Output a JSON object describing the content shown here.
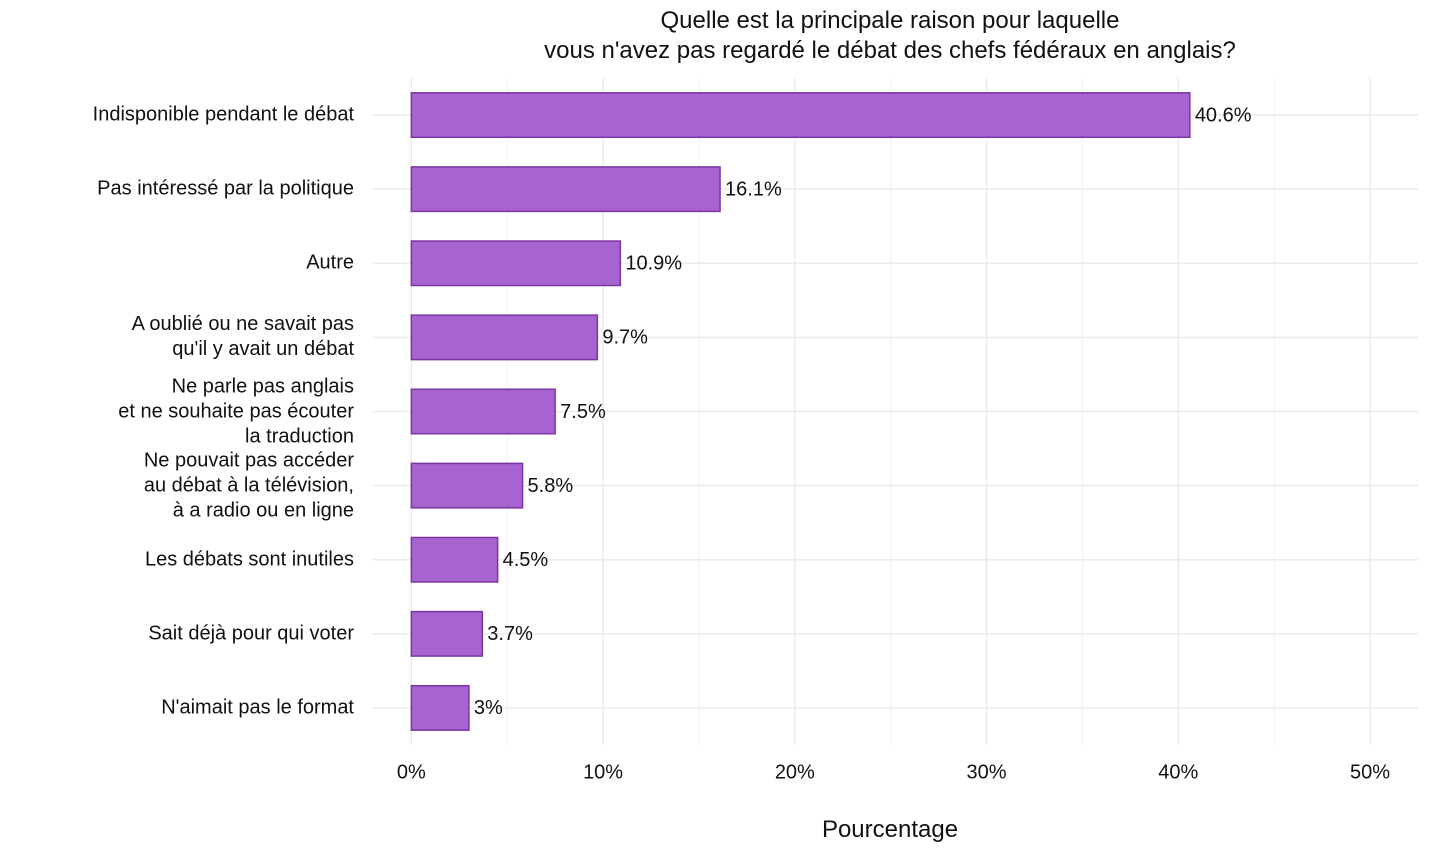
{
  "chart_data": {
    "type": "barh",
    "title": "Quelle est la principale raison pour laquelle\nvous n'avez pas regardé le débat des chefs fédéraux en anglais?",
    "x_label": "Pourcentage",
    "categories": [
      "Indisponible pendant le débat",
      "Pas intéressé par la politique",
      "Autre",
      "A oublié ou ne savait pas\nqu'il y avait un débat",
      "Ne parle pas anglais\net ne souhaite pas écouter\nla traduction",
      "Ne pouvait pas accéder\nau débat à la télévision,\nà a radio ou en ligne",
      "Les débats sont inutiles",
      "Sait déjà pour qui voter",
      "N'aimait pas le format"
    ],
    "values": [
      40.6,
      16.1,
      10.9,
      9.7,
      7.5,
      5.8,
      4.5,
      3.7,
      3
    ],
    "value_labels": [
      "40.6%",
      "16.1%",
      "10.9%",
      "9.7%",
      "7.5%",
      "5.8%",
      "4.5%",
      "3.7%",
      "3%"
    ],
    "color": "#a763cf",
    "edge_color": "#7b35a0",
    "xlim": [
      -2,
      52.5
    ],
    "xticks": [
      {
        "value": 0,
        "label": "0%"
      },
      {
        "value": 10,
        "label": "10%"
      },
      {
        "value": 20,
        "label": "20%"
      },
      {
        "value": 30,
        "label": "30%"
      },
      {
        "value": 40,
        "label": "40%"
      },
      {
        "value": 50,
        "label": "50%"
      }
    ],
    "xminor_ticks": [
      5,
      15,
      25,
      35,
      45
    ],
    "grid": true
  }
}
